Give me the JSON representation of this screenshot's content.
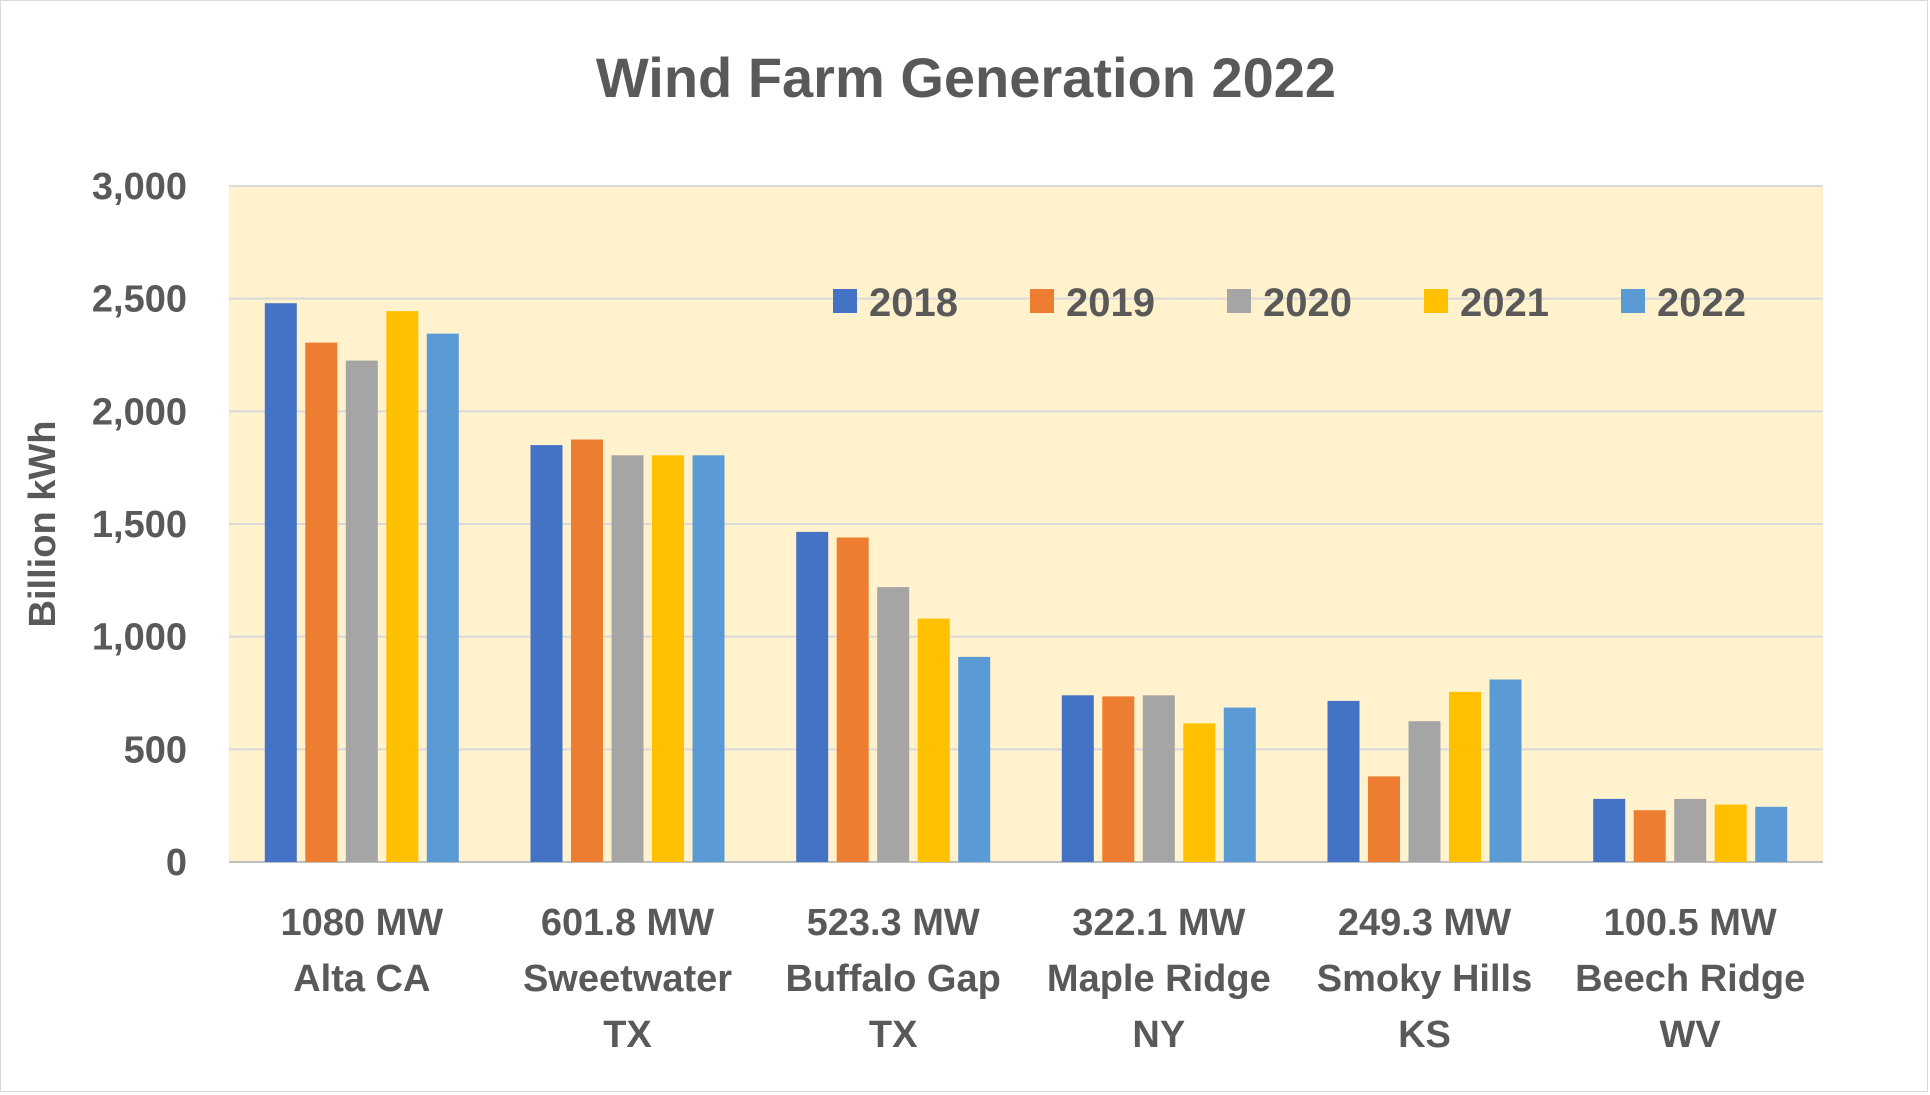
{
  "chart_data": {
    "type": "bar",
    "title": "Wind Farm Generation 2022",
    "xlabel": "",
    "ylabel": "Billion kWh",
    "ylim": [
      0,
      3000
    ],
    "yticks": [
      "0",
      "500",
      "1,000",
      "1,500",
      "2,000",
      "2,500",
      "3,000"
    ],
    "ytick_values": [
      0,
      500,
      1000,
      1500,
      2000,
      2500,
      3000
    ],
    "grid": true,
    "legend_position": "top-right",
    "plot_background": "#FFF2CC",
    "categories": [
      [
        "1080 MW",
        "Alta CA"
      ],
      [
        "601.8 MW",
        "Sweetwater",
        "TX"
      ],
      [
        "523.3 MW",
        "Buffalo Gap",
        "TX"
      ],
      [
        "322.1 MW",
        "Maple Ridge",
        "NY"
      ],
      [
        "249.3 MW",
        "Smoky Hills",
        "KS"
      ],
      [
        "100.5 MW",
        "Beech Ridge",
        "WV"
      ]
    ],
    "series": [
      {
        "name": "2018",
        "color": "#4472C4",
        "values": [
          2480,
          1850,
          1465,
          740,
          715,
          280
        ]
      },
      {
        "name": "2019",
        "color": "#ED7D31",
        "values": [
          2305,
          1875,
          1440,
          735,
          380,
          230
        ]
      },
      {
        "name": "2020",
        "color": "#A5A5A5",
        "values": [
          2225,
          1805,
          1220,
          740,
          625,
          280
        ]
      },
      {
        "name": "2021",
        "color": "#FFC000",
        "values": [
          2445,
          1805,
          1080,
          615,
          755,
          255
        ]
      },
      {
        "name": "2022",
        "color": "#5B9BD5",
        "values": [
          2345,
          1805,
          910,
          685,
          810,
          245
        ]
      }
    ]
  }
}
